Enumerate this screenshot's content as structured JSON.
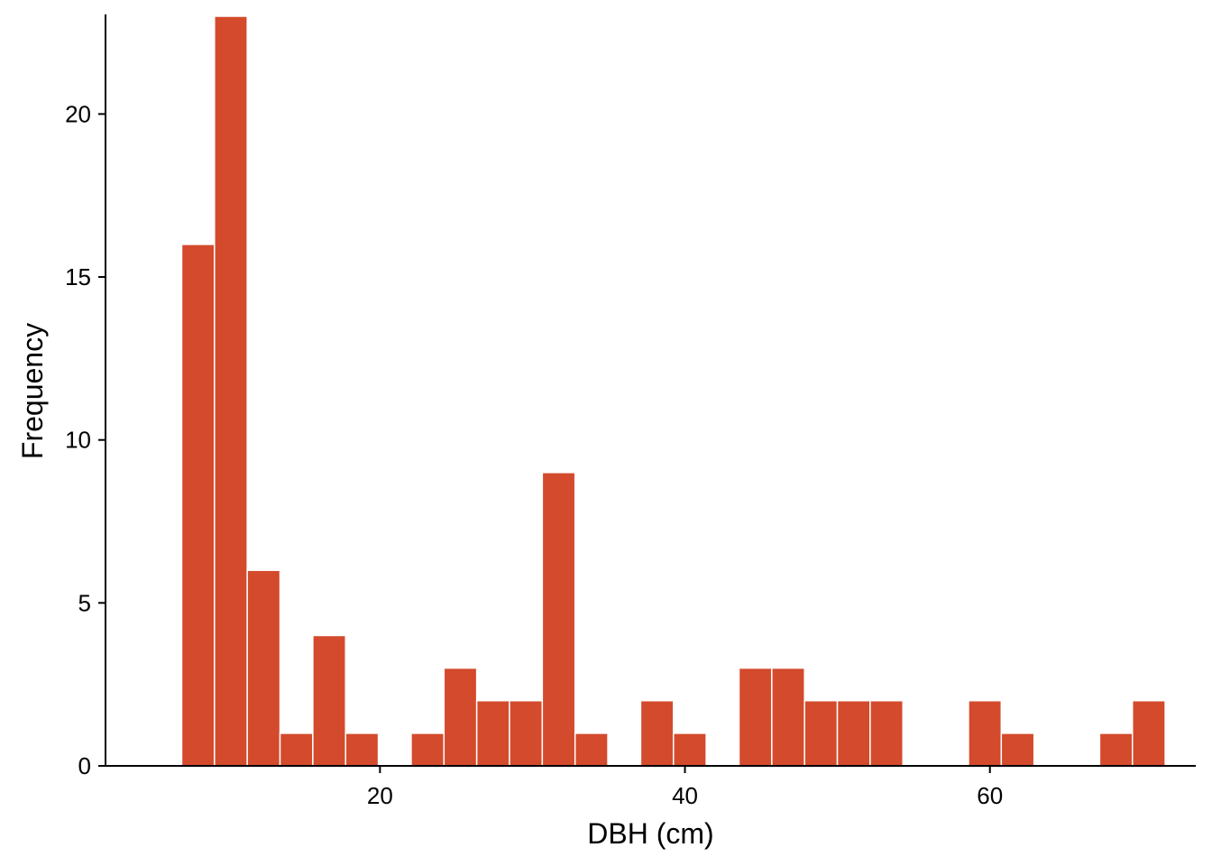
{
  "chart_data": {
    "type": "bar",
    "title": "",
    "xlabel": "DBH (cm)",
    "ylabel": "Frequency",
    "bin_width": 2.15,
    "bins_start": 7.0,
    "x": [
      8.07,
      10.22,
      12.37,
      14.52,
      16.67,
      18.82,
      20.97,
      23.12,
      25.27,
      27.42,
      29.57,
      31.72,
      33.87,
      36.02,
      38.17,
      40.32,
      42.47,
      44.62,
      46.77,
      48.92,
      51.07,
      53.22,
      55.37,
      57.52,
      59.67,
      61.82,
      63.97,
      66.12,
      68.27,
      70.42
    ],
    "values": [
      16,
      23,
      6,
      1,
      4,
      1,
      0,
      1,
      3,
      2,
      2,
      9,
      1,
      0,
      2,
      1,
      0,
      3,
      3,
      2,
      2,
      2,
      0,
      0,
      2,
      1,
      0,
      0,
      1,
      2
    ],
    "xlim": [
      2.0,
      73.5
    ],
    "ylim": [
      0,
      23
    ],
    "x_ticks": [
      20,
      40,
      60
    ],
    "y_ticks": [
      0,
      5,
      10,
      15,
      20
    ],
    "grid": false,
    "legend": "none",
    "bar_color": "#D44A2C",
    "bar_edge_color": "#FFFFFF"
  }
}
